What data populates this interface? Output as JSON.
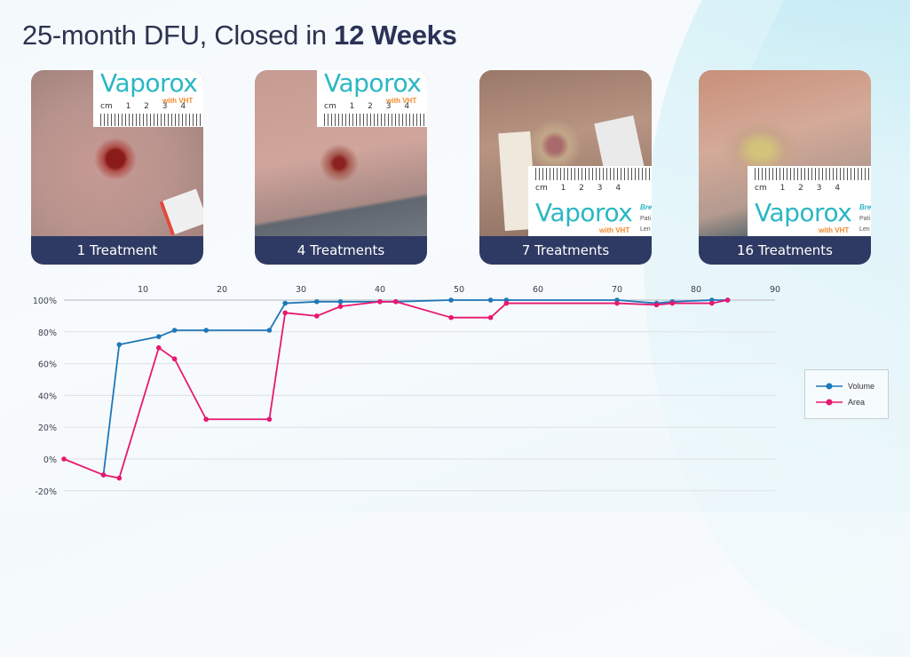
{
  "title": {
    "regular": "25-month DFU, Closed in ",
    "bold": "12 Weeks"
  },
  "cards": [
    {
      "caption": "1 Treatment",
      "brand": "Vaporox",
      "brand_sub": "with VHT",
      "ruler_labels": "cm 1 2 3 4"
    },
    {
      "caption": "4 Treatments",
      "brand": "Vaporox",
      "brand_sub": "with VHT",
      "ruler_labels": "cm 1 2 3 4"
    },
    {
      "caption": "7 Treatments",
      "brand": "Vaporox",
      "brand_sub": "with VHT",
      "ruler_labels": "cm 1 2 3 4",
      "side_text": [
        "Bre",
        "Pati",
        "Len"
      ]
    },
    {
      "caption": "16 Treatments",
      "brand": "Vaporox",
      "brand_sub": "with VHT",
      "ruler_labels": "cm 1 2 3 4",
      "side_text": [
        "Bre",
        "Pati",
        "Len"
      ]
    }
  ],
  "legend": {
    "volume": "Volume",
    "area": "Area"
  },
  "colors": {
    "volume": "#1f77b8",
    "area": "#e8176f",
    "caption_bg": "#2e3a63",
    "title": "#2c3350",
    "brand": "#2bb7c4"
  },
  "chart_data": {
    "type": "line",
    "title": "",
    "xlabel": "",
    "ylabel": "",
    "x_ticks": [
      10,
      20,
      30,
      40,
      50,
      60,
      70,
      80,
      90
    ],
    "x_axis_position": "top",
    "y_ticks": [
      "100%",
      "80%",
      "60%",
      "40%",
      "20%",
      "0%",
      "-20%"
    ],
    "xlim": [
      0,
      90
    ],
    "ylim": [
      -20,
      100
    ],
    "grid": "horizontal",
    "legend_position": "right",
    "series": [
      {
        "name": "Volume",
        "color": "#1f77b8",
        "x": [
          5,
          7,
          12,
          14,
          18,
          26,
          28,
          32,
          35,
          40,
          42,
          49,
          54,
          56,
          70,
          75,
          77,
          82,
          84
        ],
        "y": [
          -10,
          72,
          77,
          81,
          81,
          81,
          98,
          99,
          99,
          99,
          99,
          100,
          100,
          100,
          100,
          98,
          99,
          100,
          100
        ]
      },
      {
        "name": "Area",
        "color": "#e8176f",
        "x": [
          0,
          5,
          7,
          12,
          14,
          18,
          26,
          28,
          32,
          35,
          40,
          42,
          49,
          54,
          56,
          70,
          75,
          77,
          82,
          84
        ],
        "y": [
          0,
          -10,
          -12,
          70,
          63,
          25,
          25,
          92,
          90,
          96,
          99,
          99,
          89,
          89,
          98,
          98,
          97,
          98,
          98,
          100
        ]
      }
    ]
  }
}
